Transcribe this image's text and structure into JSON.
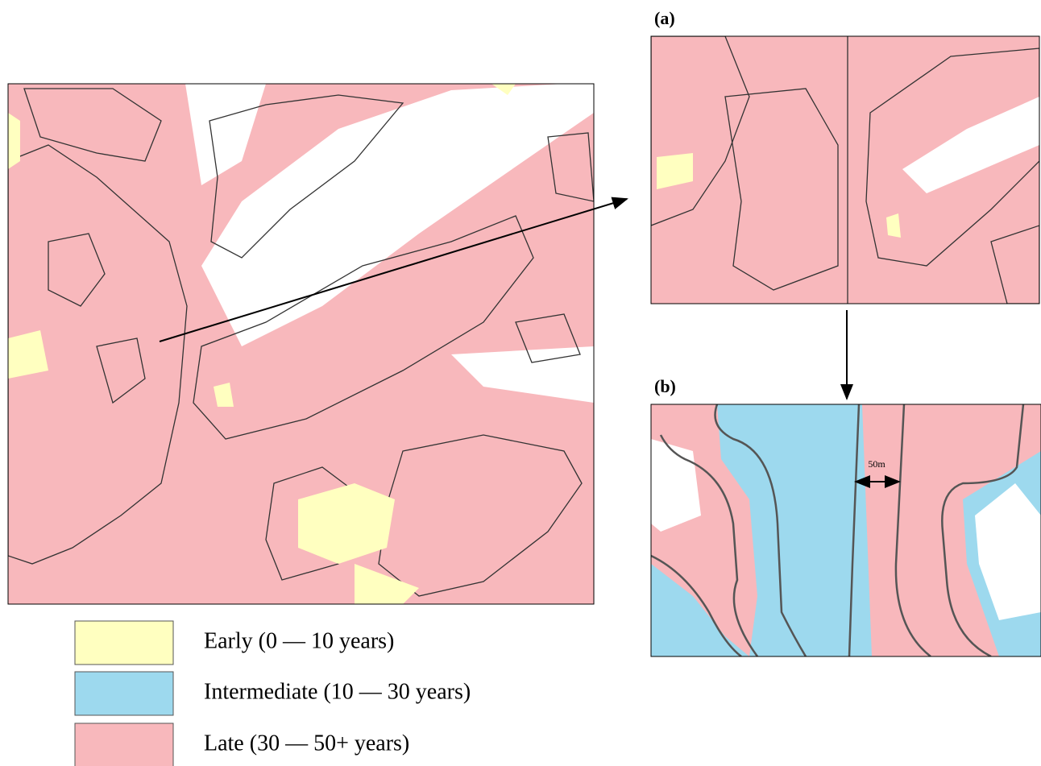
{
  "panels": {
    "a": "(a)",
    "b": "(b)"
  },
  "scale_label": "50m",
  "legend": [
    {
      "label": "Early (0 — 10 years)",
      "color": "#ffffc0"
    },
    {
      "label": "Intermediate (10 — 30 years)",
      "color": "#9dd9ee"
    },
    {
      "label": "Late (30 — 50+ years)",
      "color": "#f8b8bc"
    }
  ]
}
